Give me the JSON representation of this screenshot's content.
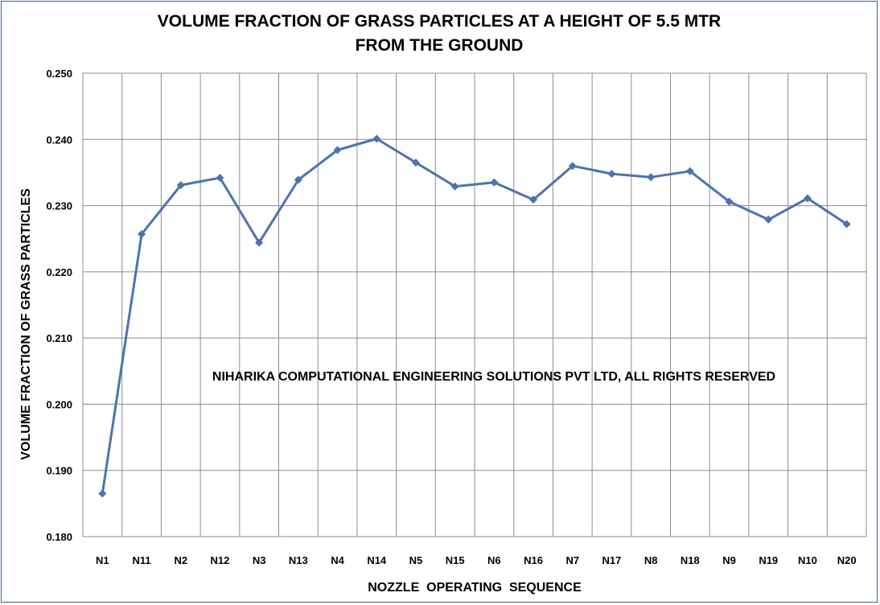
{
  "chart_data": {
    "type": "line",
    "title_lines": [
      "VOLUME FRACTION OF GRASS PARTICLES AT A HEIGHT OF 5.5 MTR",
      "FROM THE GROUND"
    ],
    "xlabel": "NOZZLE  OPERATING  SEQUENCE",
    "ylabel": "VOLUME FRACTION OF GRASS PARTICLES",
    "categories": [
      "N1",
      "N11",
      "N2",
      "N12",
      "N3",
      "N13",
      "N4",
      "N14",
      "N5",
      "N15",
      "N6",
      "N16",
      "N7",
      "N17",
      "N8",
      "N18",
      "N9",
      "N19",
      "N10",
      "N20"
    ],
    "series": [
      {
        "values": [
          0.1865,
          0.2257,
          0.2331,
          0.2342,
          0.2244,
          0.2339,
          0.2384,
          0.2401,
          0.2365,
          0.2329,
          0.2335,
          0.2309,
          0.236,
          0.2348,
          0.2343,
          0.2352,
          0.2306,
          0.2279,
          0.2311,
          0.2272
        ],
        "color": "#4a74ae",
        "marker": "diamond"
      }
    ],
    "ylim": [
      0.18,
      0.25
    ],
    "yticks": [
      "0.180",
      "0.190",
      "0.200",
      "0.210",
      "0.220",
      "0.230",
      "0.240",
      "0.250"
    ],
    "grid": true,
    "annotation": "NIHARIKA COMPUTATIONAL ENGINEERING SOLUTIONS PVT LTD, ALL RIGHTS RESERVED",
    "colors": {
      "line": "#4a74ae",
      "grid": "#8c8c8c",
      "frame": "#3f5f8a"
    }
  }
}
